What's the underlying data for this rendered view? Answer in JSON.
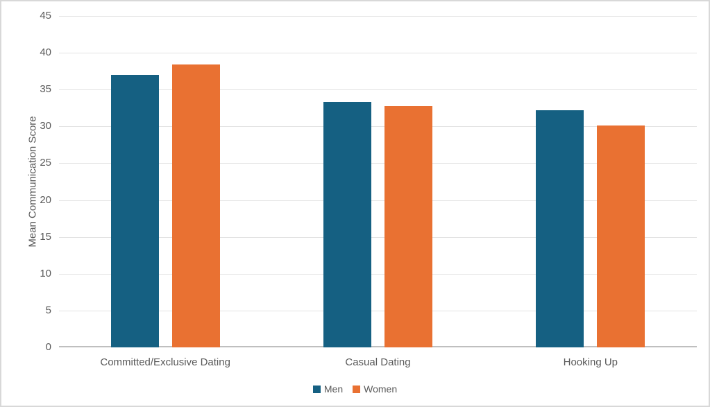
{
  "chart": {
    "y_axis_title": "Mean Communication Score",
    "colors": {
      "men": "#156082",
      "women": "#E97132",
      "gridline": "#E2E2E2",
      "axis_line": "#BFBFBF",
      "text": "#595959"
    }
  },
  "chart_data": {
    "type": "bar",
    "categories": [
      "Committed/Exclusive Dating",
      "Casual Dating",
      "Hooking Up"
    ],
    "series": [
      {
        "name": "Men",
        "color": "#156082",
        "values": [
          37.0,
          33.3,
          32.2
        ]
      },
      {
        "name": "Women",
        "color": "#E97132",
        "values": [
          38.4,
          32.8,
          30.1
        ]
      }
    ],
    "title": "",
    "xlabel": "",
    "ylabel": "Mean Communication Score",
    "ylim": [
      0,
      45
    ],
    "ytick_step": 5,
    "yticks": [
      0,
      5,
      10,
      15,
      20,
      25,
      30,
      35,
      40,
      45
    ],
    "grid": true,
    "legend_position": "bottom"
  }
}
